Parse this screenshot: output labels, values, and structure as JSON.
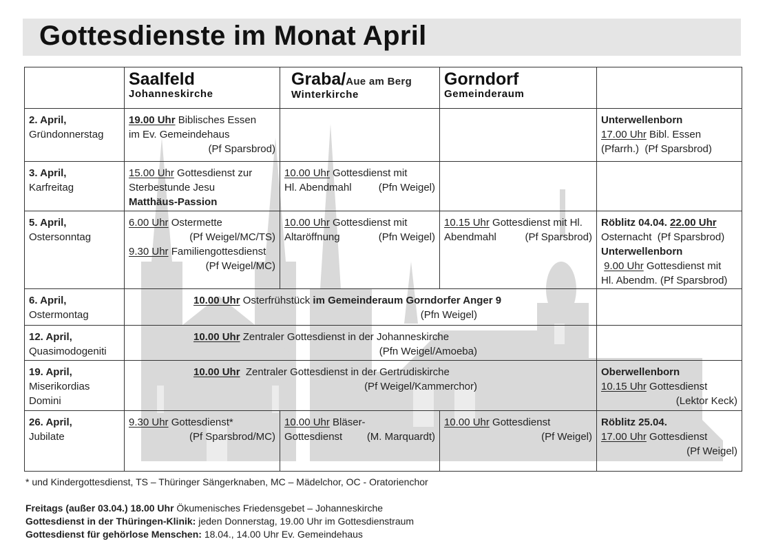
{
  "title": "Gottesdienste im Monat April",
  "header": {
    "saalfeld": {
      "name": "Saalfeld",
      "sub": "Johanneskirche"
    },
    "graba": {
      "name": "Graba/",
      "name_suffix": "Aue am Berg",
      "sub": "Winterkirche"
    },
    "gorndorf": {
      "name": "Gorndorf",
      "sub": "Gemeinderaum"
    }
  },
  "rows": [
    {
      "date": [
        "2. April,",
        "Gründonnerstag"
      ],
      "saalfeld": [
        {
          "l": [
            {
              "t": "19.00 Uhr",
              "s": "ub"
            },
            {
              "t": " Biblisches Essen"
            }
          ]
        },
        {
          "l": [
            {
              "t": "im Ev. Gemeindehaus"
            }
          ]
        },
        {
          "r": [
            {
              "t": "(Pf Sparsbrod)"
            }
          ]
        }
      ],
      "graba": [],
      "gorndorf": [],
      "other": [
        {
          "l": [
            {
              "t": "Unterwellenborn",
              "s": "b"
            }
          ]
        },
        {
          "l": [
            {
              "t": "17.00 Uhr",
              "s": "u"
            },
            {
              "t": " Bibl. Essen"
            }
          ]
        },
        {
          "l": [
            {
              "t": "(Pfarrh.)  (Pf Sparsbrod)"
            }
          ]
        }
      ]
    },
    {
      "date": [
        "3. April,",
        "Karfreitag"
      ],
      "saalfeld": [
        {
          "l": [
            {
              "t": "15.00 Uhr",
              "s": "u"
            },
            {
              "t": " Gottesdienst zur"
            }
          ]
        },
        {
          "l": [
            {
              "t": "Sterbestunde Jesu"
            }
          ]
        },
        {
          "l": [
            {
              "t": "Matthäus-Passion",
              "s": "b"
            }
          ]
        }
      ],
      "graba": [
        {
          "l": [
            {
              "t": "10.00 Uhr",
              "s": "u"
            },
            {
              "t": " Gottesdienst mit"
            }
          ]
        },
        {
          "l": [
            {
              "t": "Hl. Abendmahl"
            }
          ],
          "r": [
            {
              "t": "(Pfn Weigel)"
            }
          ]
        }
      ],
      "gorndorf": [],
      "other": []
    },
    {
      "date": [
        "5. April,",
        "Ostersonntag"
      ],
      "saalfeld": [
        {
          "l": [
            {
              "t": "6.00 Uhr",
              "s": "u"
            },
            {
              "t": " Ostermette"
            }
          ]
        },
        {
          "r": [
            {
              "t": "(Pf Weigel/MC/TS)"
            }
          ]
        },
        {
          "l": [
            {
              "t": "9.30 Uhr",
              "s": "u"
            },
            {
              "t": " Familiengottesdienst"
            }
          ]
        },
        {
          "r": [
            {
              "t": "(Pf Weigel/MC)"
            }
          ]
        }
      ],
      "graba": [
        {
          "l": [
            {
              "t": "10.00 Uhr",
              "s": "u"
            },
            {
              "t": " Gottesdienst mit"
            }
          ]
        },
        {
          "l": [
            {
              "t": "Altaröffnung"
            }
          ],
          "r": [
            {
              "t": "(Pfn Weigel)"
            }
          ]
        }
      ],
      "gorndorf": [
        {
          "l": [
            {
              "t": "10.15 Uhr",
              "s": "u"
            },
            {
              "t": " Gottesdienst mit Hl."
            }
          ]
        },
        {
          "l": [
            {
              "t": "Abendmahl"
            }
          ],
          "r": [
            {
              "t": "(Pf Sparsbrod)"
            }
          ]
        }
      ],
      "other": [
        {
          "l": [
            {
              "t": "Röblitz 04.04. ",
              "s": "b"
            },
            {
              "t": "22.00 Uhr",
              "s": "ub"
            }
          ]
        },
        {
          "l": [
            {
              "t": "Osternacht  (Pf Sparsbrod)"
            }
          ]
        },
        {
          "l": [
            {
              "t": "Unterwellenborn",
              "s": "b"
            }
          ]
        },
        {
          "l": [
            {
              "t": " "
            },
            {
              "t": "9.00 Uhr",
              "s": "u"
            },
            {
              "t": " Gottesdienst mit"
            }
          ]
        },
        {
          "l": [
            {
              "t": "Hl. Abendm. (Pf Sparsbrod)"
            }
          ]
        }
      ]
    },
    {
      "date": [
        "6. April,",
        "Ostermontag"
      ],
      "span": [
        {
          "l": [
            {
              "t": "10.00 Uhr",
              "s": "ub"
            },
            {
              "t": " Osterfrühstück "
            },
            {
              "t": "im Gemeinderaum Gorndorfer Anger 9",
              "s": "b"
            }
          ]
        },
        {
          "r": [
            {
              "t": "(Pfn Weigel)"
            }
          ]
        }
      ],
      "other": []
    },
    {
      "date": [
        "12. April,",
        "Quasimodogeniti"
      ],
      "span": [
        {
          "l": [
            {
              "t": "10.00 Uhr",
              "s": "ub"
            },
            {
              "t": " Zentraler Gottesdienst in der Johanneskirche"
            }
          ]
        },
        {
          "r": [
            {
              "t": "(Pfn Weigel/Amoeba)"
            }
          ]
        }
      ],
      "other": []
    },
    {
      "date": [
        "19. April,",
        "Miserikordias",
        "Domini"
      ],
      "span": [
        {
          "l": [
            {
              "t": "10.00 Uhr",
              "s": "ub"
            },
            {
              "t": "  Zentraler Gottesdienst in der Gertrudiskirche"
            }
          ]
        },
        {
          "r": [
            {
              "t": "(Pf Weigel/Kammerchor)"
            }
          ]
        }
      ],
      "other": [
        {
          "l": [
            {
              "t": "Oberwellenborn",
              "s": "b"
            }
          ]
        },
        {
          "l": [
            {
              "t": "10.15 Uhr",
              "s": "u"
            },
            {
              "t": " Gottesdienst"
            }
          ]
        },
        {
          "r": [
            {
              "t": "(Lektor Keck)"
            }
          ]
        }
      ]
    },
    {
      "date": [
        "26. April,",
        "Jubilate"
      ],
      "saalfeld": [
        {
          "l": [
            {
              "t": "9.30 Uhr",
              "s": "u"
            },
            {
              "t": " Gottesdienst*"
            }
          ]
        },
        {
          "r": [
            {
              "t": "(Pf Sparsbrod/MC)"
            }
          ]
        }
      ],
      "graba": [
        {
          "l": [
            {
              "t": "10.00 Uhr",
              "s": "u"
            },
            {
              "t": " Bläser-"
            }
          ]
        },
        {
          "l": [
            {
              "t": "Gottesdienst"
            }
          ],
          "r": [
            {
              "t": "(M. Marquardt)"
            }
          ]
        }
      ],
      "gorndorf": [
        {
          "l": [
            {
              "t": "10.00 Uhr",
              "s": "u"
            },
            {
              "t": " Gottesdienst"
            }
          ]
        },
        {
          "r": [
            {
              "t": "(Pf Weigel)"
            }
          ]
        }
      ],
      "other": [
        {
          "l": [
            {
              "t": "Röblitz 25.04.",
              "s": "b"
            }
          ]
        },
        {
          "l": [
            {
              "t": "17.00 Uhr",
              "s": "u"
            },
            {
              "t": " Gottesdienst"
            }
          ]
        },
        {
          "r": [
            {
              "t": "(Pf Weigel)"
            }
          ]
        }
      ]
    }
  ],
  "footnote": "* und Kindergottesdienst, TS – Thüringer Sängerknaben, MC – Mädelchor, OC - Oratorienchor",
  "notes": [
    {
      "bold": "Freitags (außer 03.04.) 18.00 Uhr",
      "text": " Ökumenisches Friedensgebet – Johanneskirche"
    },
    {
      "bold": "Gottesdienst in der Thüringen-Klinik:",
      "text": " jeden Donnerstag, 19.00 Uhr im Gottesdienstraum"
    },
    {
      "bold": "Gottesdienst für gehörlose Menschen:",
      "text": " 18.04., 14.00 Uhr Ev. Gemeindehaus"
    }
  ],
  "colors": {
    "title_bar": "#e5e5e5",
    "silhouette": "#d9d9d9",
    "text": "#222222"
  },
  "background_image": "church-silhouettes"
}
